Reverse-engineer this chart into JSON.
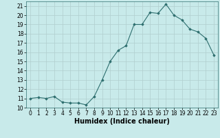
{
  "x": [
    0,
    1,
    2,
    3,
    4,
    5,
    6,
    7,
    8,
    9,
    10,
    11,
    12,
    13,
    14,
    15,
    16,
    17,
    18,
    19,
    20,
    21,
    22,
    23
  ],
  "y": [
    11,
    11.1,
    11,
    11.2,
    10.6,
    10.5,
    10.5,
    10.3,
    11.2,
    13,
    15,
    16.2,
    16.7,
    19,
    19,
    20.3,
    20.2,
    21.2,
    20,
    19.5,
    18.5,
    18.2,
    17.5,
    15.7
  ],
  "line_color": "#2d6e6e",
  "marker": "D",
  "marker_size": 1.8,
  "bg_color": "#c8eaea",
  "grid_color": "#b0cece",
  "xlabel": "Humidex (Indice chaleur)",
  "xlim": [
    -0.5,
    23.5
  ],
  "ylim": [
    10,
    21.5
  ],
  "yticks": [
    10,
    11,
    12,
    13,
    14,
    15,
    16,
    17,
    18,
    19,
    20,
    21
  ],
  "xticks": [
    0,
    1,
    2,
    3,
    4,
    5,
    6,
    7,
    8,
    9,
    10,
    11,
    12,
    13,
    14,
    15,
    16,
    17,
    18,
    19,
    20,
    21,
    22,
    23
  ],
  "tick_fontsize": 5.5,
  "label_fontsize": 7
}
